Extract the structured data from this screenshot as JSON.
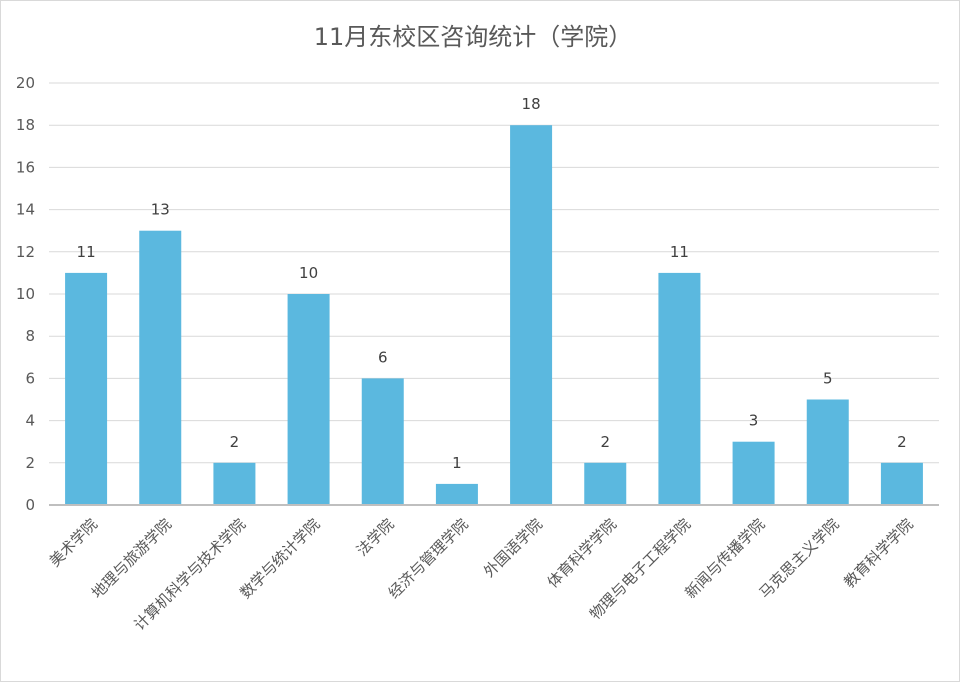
{
  "chart_data": {
    "type": "bar",
    "title": "11月东校区咨询统计（学院）",
    "xlabel": "",
    "ylabel": "",
    "categories": [
      "美术学院",
      "地理与旅游学院",
      "计算机科学与技术学院",
      "数学与统计学院",
      "法学院",
      "经济与管理学院",
      "外国语学院",
      "体育科学学院",
      "物理与电子工程学院",
      "新闻与传播学院",
      "马克思主义学院",
      "教育科学学院"
    ],
    "values": [
      11,
      13,
      2,
      10,
      6,
      1,
      18,
      2,
      11,
      3,
      5,
      2
    ],
    "ylim": [
      0,
      20
    ],
    "yticks": [
      0,
      2,
      4,
      6,
      8,
      10,
      12,
      14,
      16,
      18,
      20
    ],
    "grid": true,
    "data_labels": true,
    "bar_color": "#5BB8DF"
  }
}
